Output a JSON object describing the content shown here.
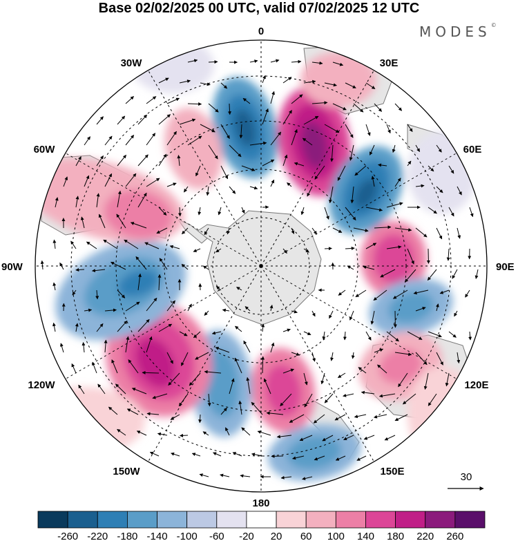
{
  "title": "Base 02/02/2025 00 UTC, valid 07/02/2025 12 UTC",
  "brand": "MODES",
  "brand_mark": "©",
  "lon_labels": {
    "top": "0",
    "bottom": "180",
    "left": "90W",
    "right": "90E",
    "w30": "30W",
    "e30": "30E",
    "w60": "60W",
    "e60": "60E",
    "w120": "120W",
    "e120": "120E",
    "w150": "150W",
    "e150": "150E"
  },
  "reference_vector": {
    "value": "30"
  },
  "colorbar": {
    "ticks": [
      "-260",
      "-220",
      "-180",
      "-140",
      "-100",
      "-60",
      "-20",
      "20",
      "60",
      "100",
      "140",
      "180",
      "220",
      "260"
    ],
    "colors": [
      "#0a3a5c",
      "#1a5f8f",
      "#2e7fb5",
      "#5a9dc8",
      "#8cb4d9",
      "#bcc9e4",
      "#e4e2f0",
      "#ffffff",
      "#f9d3d7",
      "#f3b0bf",
      "#ec7fa6",
      "#dc4697",
      "#c01f87",
      "#8b1b7c",
      "#5a0f6a"
    ]
  },
  "colors": {
    "land": "#e6e6e6",
    "coast": "#777777",
    "grid": "#000000"
  }
}
